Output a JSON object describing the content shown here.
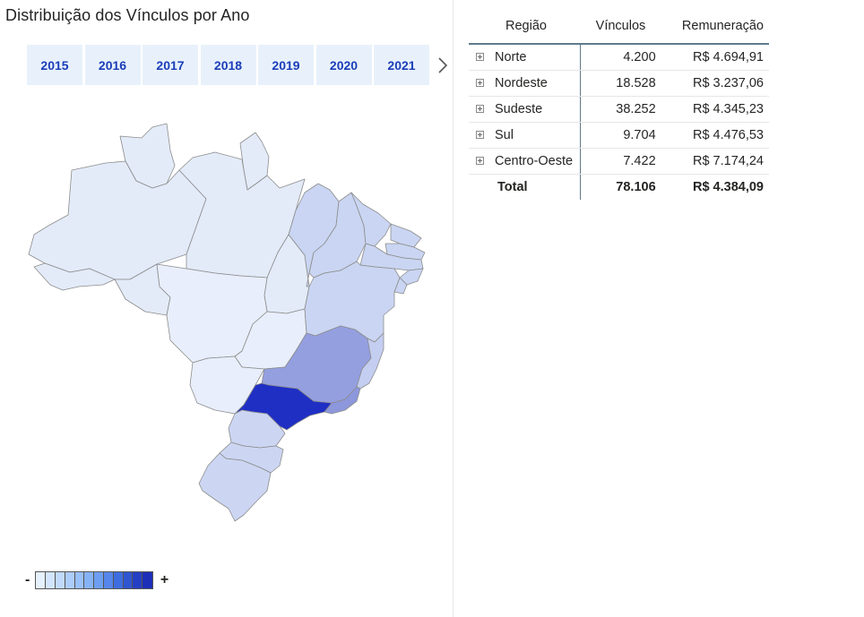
{
  "title": "Distribuição dos Vínculos por Ano",
  "slicer": {
    "years": [
      "2015",
      "2016",
      "2017",
      "2018",
      "2019",
      "2020",
      "2021"
    ],
    "next_icon": "chevron-right-icon"
  },
  "map": {
    "region_colors": {
      "norte": "#e3ebf9",
      "nordeste": "#c9d5f2",
      "centro_oeste": "#e8eefb",
      "sudeste_mg": "#949fe0",
      "sudeste_sp": "#1f2fc4",
      "sudeste_rj": "#8d97dc",
      "sudeste_es": "#c4cef1",
      "sul": "#ccd6f3"
    }
  },
  "legend": {
    "min_label": "-",
    "max_label": "+",
    "colors": [
      "#e6f1fd",
      "#d3e5fc",
      "#c0d9fb",
      "#acccf9",
      "#99c0f8",
      "#86b3f6",
      "#6d9ef1",
      "#5686ea",
      "#3e6ddf",
      "#2f55d0",
      "#2540c4",
      "#1d2fb8"
    ]
  },
  "table": {
    "headers": [
      "Região",
      "Vínculos",
      "Remuneração"
    ],
    "rows": [
      {
        "region": "Norte",
        "vinculos": "4.200",
        "remuneracao": "R$ 4.694,91"
      },
      {
        "region": "Nordeste",
        "vinculos": "18.528",
        "remuneracao": "R$ 3.237,06"
      },
      {
        "region": "Sudeste",
        "vinculos": "38.252",
        "remuneracao": "R$ 4.345,23"
      },
      {
        "region": "Sul",
        "vinculos": "9.704",
        "remuneracao": "R$ 4.476,53"
      },
      {
        "region": "Centro-Oeste",
        "vinculos": "7.422",
        "remuneracao": "R$ 7.174,24"
      }
    ],
    "total": {
      "label": "Total",
      "vinculos": "78.106",
      "remuneracao": "R$ 4.384,09"
    }
  }
}
